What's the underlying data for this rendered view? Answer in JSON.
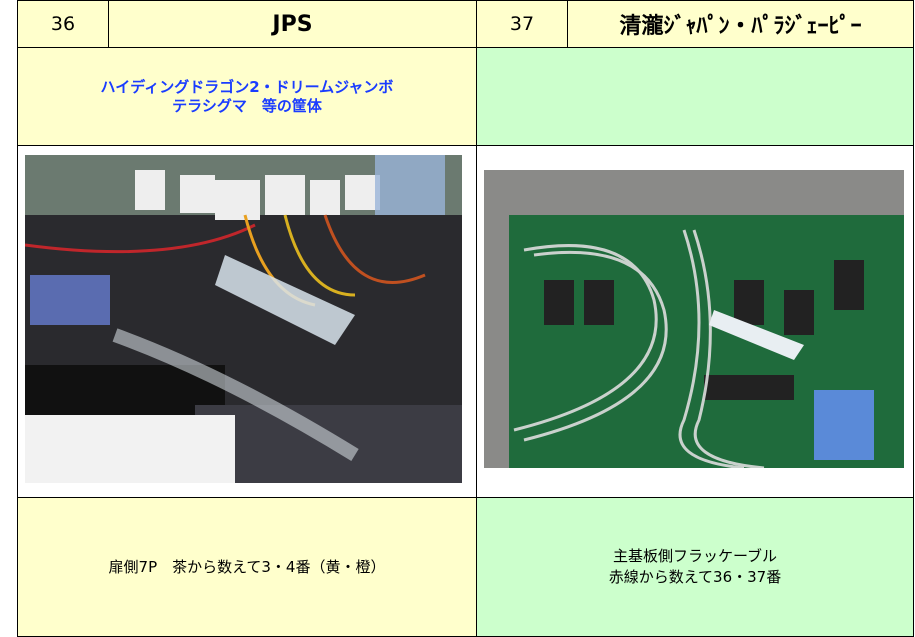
{
  "left": {
    "number": "36",
    "name": "JPS",
    "subtitle": [
      "ハイディングドラゴン2・ドリームジャンボ",
      "テラシグマ　等の筐体"
    ],
    "caption": [
      "扉側7P　茶から数えて3・4番（黄・橙）"
    ]
  },
  "right": {
    "number": "37",
    "name": "清瀧ｼﾞｬﾊﾟﾝ・ﾊﾟﾗｼﾞｪｰﾋﾟｰ",
    "subtitle": [],
    "caption": [
      "主基板側フラッケーブル",
      "赤線から数えて36・37番"
    ]
  }
}
